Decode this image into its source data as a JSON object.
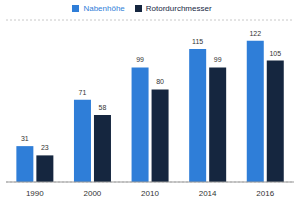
{
  "chart_data": {
    "type": "bar",
    "categories": [
      "1990",
      "2000",
      "2010",
      "2014",
      "2016"
    ],
    "series": [
      {
        "name": "Nabenhöhe",
        "color": "#2f7ed8",
        "values": [
          31,
          71,
          99,
          115,
          122
        ]
      },
      {
        "name": "Rotordurchmesser",
        "color": "#15263f",
        "values": [
          23,
          58,
          80,
          99,
          105
        ]
      }
    ],
    "ylim": [
      0,
      140
    ],
    "yticks": [
      0,
      20,
      40,
      60,
      80,
      100,
      120,
      140
    ],
    "grid": true,
    "legend": "top",
    "data_labels": true,
    "tick_labels": "x"
  }
}
